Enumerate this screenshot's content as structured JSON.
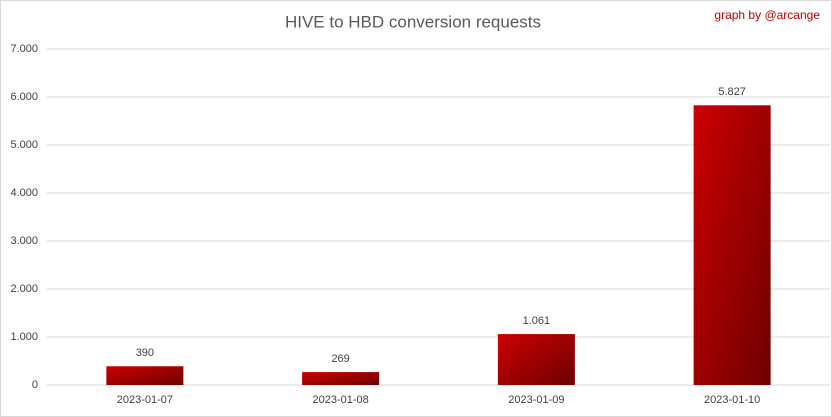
{
  "chart_data": {
    "type": "bar",
    "title": "HIVE to HBD conversion requests",
    "annotation": "graph by @arcange",
    "categories": [
      "2023-01-07",
      "2023-01-08",
      "2023-01-09",
      "2023-01-10"
    ],
    "values": [
      390,
      269,
      1061,
      5827
    ],
    "value_labels": [
      "390",
      "269",
      "1.061",
      "5.827"
    ],
    "color": "#cc0000",
    "ylim": [
      0,
      7000
    ],
    "yticks": [
      0,
      {
        "value": 1000,
        "label": "1.000"
      },
      {
        "value": 2000,
        "label": "2.000"
      },
      {
        "value": 3000,
        "label": "3.000"
      },
      {
        "value": 4000,
        "label": "4.000"
      },
      {
        "value": 5000,
        "label": "5.000"
      },
      {
        "value": 6000,
        "label": "6.000"
      },
      {
        "value": 7000,
        "label": "7.000"
      }
    ],
    "grid": true
  }
}
